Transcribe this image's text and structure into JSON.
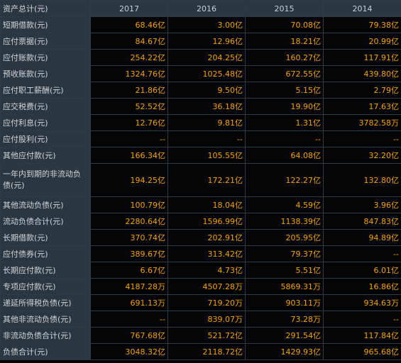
{
  "header": {
    "label": "资产总计(元)",
    "years": [
      "2017",
      "2016",
      "2015",
      "2014"
    ]
  },
  "rows": [
    {
      "label": "短期借款(元)",
      "values": [
        "68.46亿",
        "3.00亿",
        "70.08亿",
        "79.38亿"
      ]
    },
    {
      "label": "应付票据(元)",
      "values": [
        "84.67亿",
        "12.96亿",
        "18.21亿",
        "20.99亿"
      ]
    },
    {
      "label": "应付账款(元)",
      "values": [
        "254.22亿",
        "204.25亿",
        "160.27亿",
        "117.91亿"
      ]
    },
    {
      "label": "预收账款(元)",
      "values": [
        "1324.76亿",
        "1025.48亿",
        "672.55亿",
        "439.80亿"
      ]
    },
    {
      "label": "应付职工薪酬(元)",
      "values": [
        "21.86亿",
        "9.50亿",
        "5.15亿",
        "2.79亿"
      ]
    },
    {
      "label": "应交税费(元)",
      "values": [
        "52.52亿",
        "36.18亿",
        "19.90亿",
        "17.63亿"
      ]
    },
    {
      "label": "应付利息(元)",
      "values": [
        "12.76亿",
        "9.81亿",
        "1.31亿",
        "3782.58万"
      ]
    },
    {
      "label": "应付股利(元)",
      "values": [
        "--",
        "--",
        "--",
        "--"
      ]
    },
    {
      "label": "其他应付款(元)",
      "values": [
        "166.34亿",
        "105.55亿",
        "64.08亿",
        "32.20亿"
      ]
    },
    {
      "label": "一年内到期的非流动负债(元)",
      "values": [
        "194.25亿",
        "172.21亿",
        "122.27亿",
        "132.80亿"
      ],
      "tall": true
    },
    {
      "label": "其他流动负债(元)",
      "values": [
        "100.79亿",
        "18.04亿",
        "4.59亿",
        "3.96亿"
      ]
    },
    {
      "label": "流动负债合计(元)",
      "values": [
        "2280.64亿",
        "1596.99亿",
        "1138.39亿",
        "847.83亿"
      ]
    },
    {
      "label": "长期借款(元)",
      "values": [
        "370.74亿",
        "202.91亿",
        "205.95亿",
        "94.89亿"
      ]
    },
    {
      "label": "应付债券(元)",
      "values": [
        "389.67亿",
        "313.42亿",
        "79.37亿",
        "--"
      ]
    },
    {
      "label": "长期应付款(元)",
      "values": [
        "6.67亿",
        "4.73亿",
        "5.51亿",
        "6.01亿"
      ]
    },
    {
      "label": "专项应付款(元)",
      "values": [
        "4187.28万",
        "4507.28万",
        "5869.31万",
        "16.86亿"
      ]
    },
    {
      "label": "递延所得税负债(元)",
      "values": [
        "691.13万",
        "719.20万",
        "903.11万",
        "934.63万"
      ]
    },
    {
      "label": "其他非流动负债(元)",
      "values": [
        "--",
        "839.07万",
        "73.28万",
        "--"
      ]
    },
    {
      "label": "非流动负债合计(元)",
      "values": [
        "767.68亿",
        "521.72亿",
        "291.54亿",
        "117.84亿"
      ]
    },
    {
      "label": "负债合计(元)",
      "values": [
        "3048.32亿",
        "2118.72亿",
        "1429.93亿",
        "965.68亿"
      ]
    }
  ]
}
